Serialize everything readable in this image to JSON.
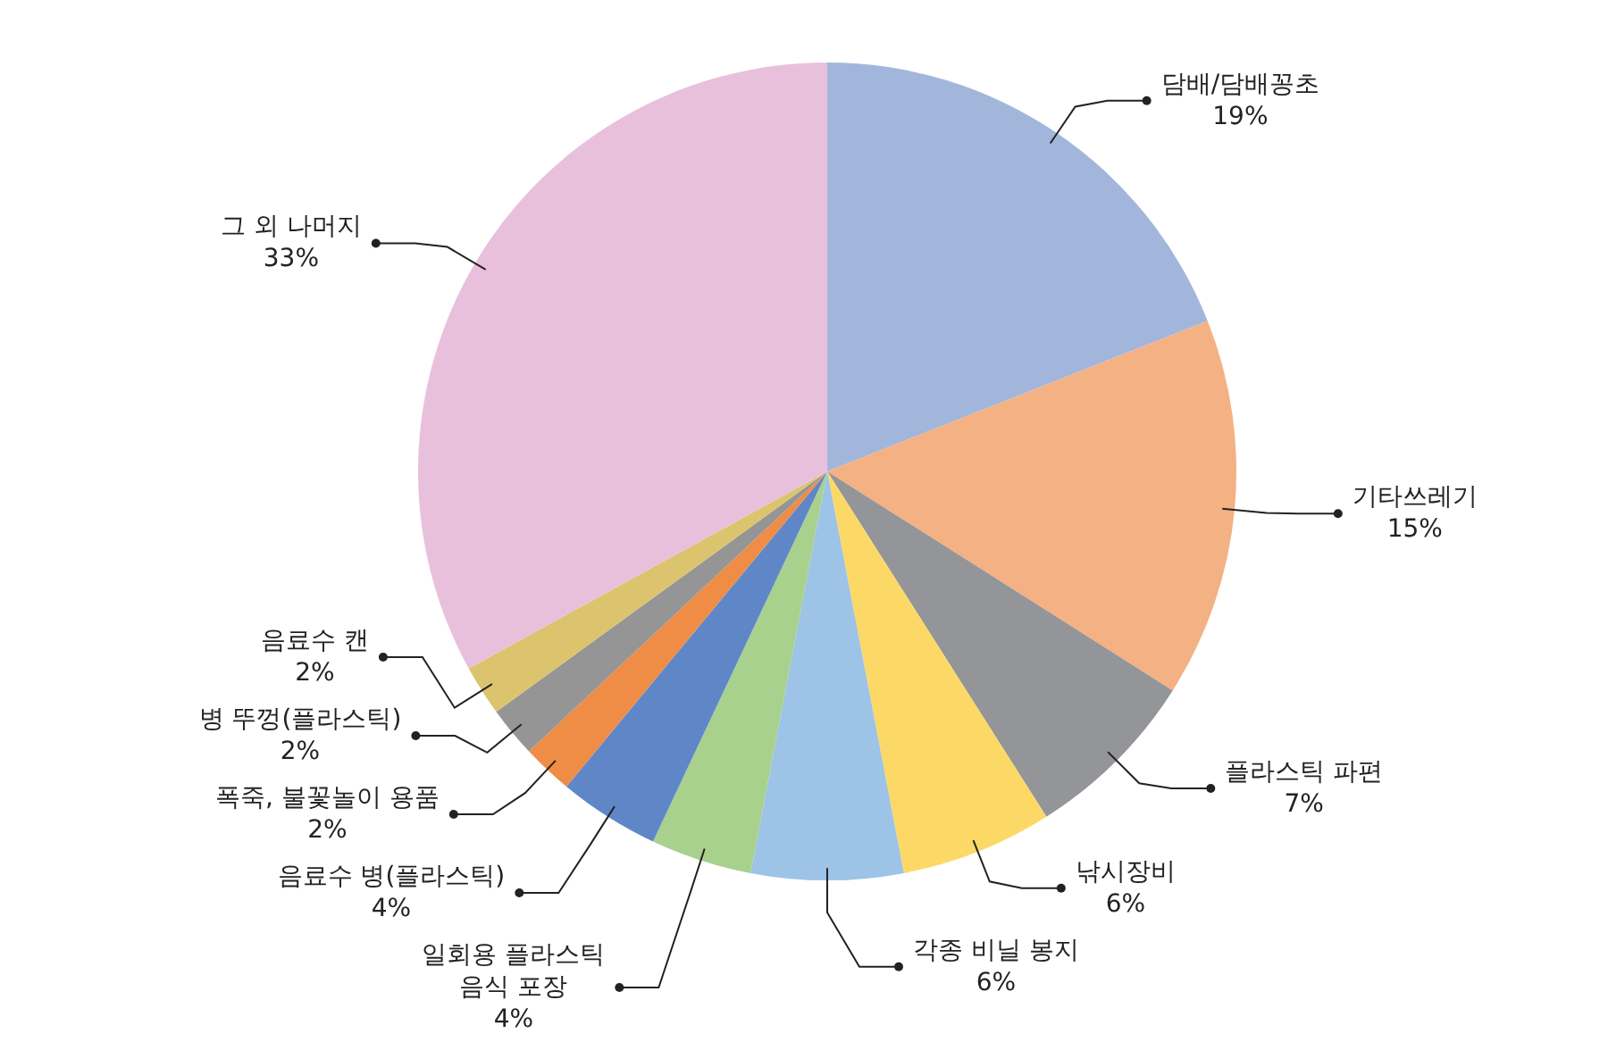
{
  "chart_data": {
    "type": "pie",
    "categories": [
      "담배/담배꽁초",
      "기타쓰레기",
      "플라스틱 파편",
      "낚시장비",
      "각종 비닐 봉지",
      "일회용 플라스틱\n음식 포장",
      "음료수 병(플라스틱)",
      "폭죽, 불꽃놀이 용품",
      "병 뚜껑(플라스틱)",
      "음료수 캔",
      "그 외 나머지"
    ],
    "values": [
      19,
      15,
      7,
      6,
      6,
      4,
      4,
      2,
      2,
      2,
      33
    ],
    "value_labels": [
      "19%",
      "15%",
      "7%",
      "6%",
      "6%",
      "4%",
      "4%",
      "2%",
      "2%",
      "2%",
      "33%"
    ],
    "colors": [
      "#a2b6dc",
      "#f4b183",
      "#939598",
      "#fcd966",
      "#9dc3e6",
      "#a9d18e",
      "#5f87c8",
      "#ef8c45",
      "#959595",
      "#dcc46e",
      "#e8c0dc"
    ]
  }
}
